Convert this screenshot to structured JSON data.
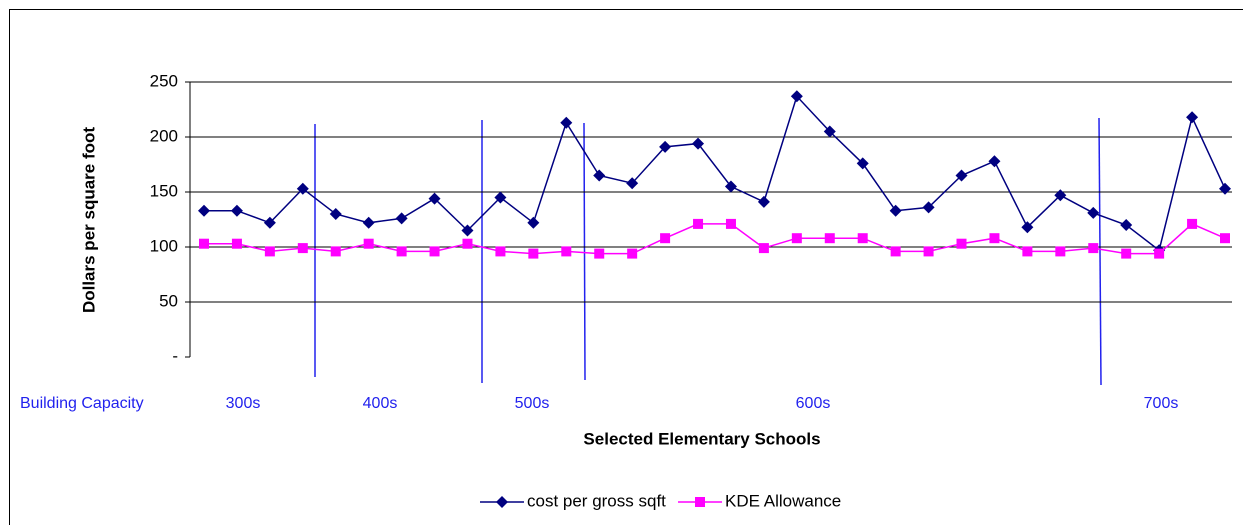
{
  "chart_data": {
    "type": "line",
    "x_label": "Selected Elementary Schools",
    "y_label": "Dollars per square foot",
    "categories": [
      null,
      null,
      null,
      null,
      null,
      null,
      null,
      null,
      null,
      null,
      null,
      null,
      null,
      null,
      null,
      null,
      null,
      null,
      null,
      null,
      null,
      null,
      null,
      null,
      null,
      null,
      null,
      null,
      null,
      null,
      null,
      null
    ],
    "series": [
      {
        "name": "cost per gross sqft",
        "color": "#000080",
        "marker": "diamond",
        "values": [
          133,
          133,
          122,
          153,
          130,
          122,
          126,
          144,
          115,
          145,
          122,
          213,
          165,
          158,
          191,
          194,
          155,
          141,
          237,
          205,
          176,
          133,
          136,
          165,
          178,
          118,
          147,
          131,
          120,
          97,
          218,
          153
        ]
      },
      {
        "name": "KDE Allowance",
        "color": "#ff00ff",
        "marker": "square",
        "values": [
          103,
          103,
          96,
          99,
          96,
          103,
          96,
          96,
          103,
          96,
          94,
          96,
          94,
          94,
          108,
          121,
          121,
          99,
          108,
          108,
          108,
          96,
          96,
          103,
          108,
          96,
          96,
          99,
          94,
          94,
          121,
          108
        ]
      }
    ],
    "ylim": [
      0,
      250
    ],
    "yticks": [
      {
        "value": 0,
        "label": "-"
      },
      50,
      100,
      150,
      200,
      250
    ],
    "grid": true,
    "legend": "bottom",
    "annotations": [
      "Building Capacity",
      "300s",
      "400s",
      "500s",
      "600s",
      "700s"
    ]
  }
}
